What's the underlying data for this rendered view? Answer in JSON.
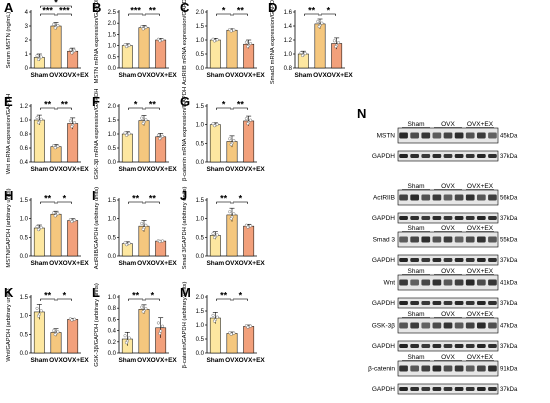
{
  "colors": {
    "sham": "#fde7a0",
    "ovx": "#f5c77e",
    "ovx_ex": "#f2a07b",
    "axis": "#000000",
    "dot": "#ffffff"
  },
  "chart_data": [
    {
      "letter": "A",
      "type": "bar",
      "categories": [
        "Sham",
        "OVX",
        "OVX+EX"
      ],
      "values": [
        0.75,
        3.0,
        1.2
      ],
      "errors": [
        0.25,
        0.25,
        0.22
      ],
      "ylabel": "Serum MSTN (ng/mL)",
      "ylim": [
        0,
        4
      ],
      "yticks": [
        "0",
        "1",
        "2",
        "3",
        "4"
      ],
      "sig": [
        {
          "a": 0,
          "b": 1,
          "label": "***",
          "level": 1
        },
        {
          "a": 1,
          "b": 2,
          "label": "***",
          "level": 1
        },
        {
          "a": 0,
          "b": 2,
          "label": "*",
          "level": 2
        }
      ]
    },
    {
      "letter": "B",
      "type": "bar",
      "categories": [
        "Sham",
        "OVX",
        "OVX+EX"
      ],
      "values": [
        1.0,
        1.8,
        1.25
      ],
      "errors": [
        0.08,
        0.1,
        0.07
      ],
      "ylabel": "MSTN mRNA expression/GAPDH",
      "ylim": [
        0,
        2.5
      ],
      "yticks": [
        "0.0",
        "0.5",
        "1.0",
        "1.5",
        "2.0",
        "2.5"
      ],
      "sig": [
        {
          "a": 0,
          "b": 1,
          "label": "***",
          "level": 1
        },
        {
          "a": 1,
          "b": 2,
          "label": "**",
          "level": 1
        }
      ]
    },
    {
      "letter": "C",
      "type": "bar",
      "categories": [
        "Sham",
        "OVX",
        "OVX+EX"
      ],
      "values": [
        1.0,
        1.35,
        0.85
      ],
      "errors": [
        0.06,
        0.05,
        0.15
      ],
      "ylabel": "ActRIIB mRNA expression/GAPDH",
      "ylim": [
        0,
        2.0
      ],
      "yticks": [
        "0.0",
        "0.5",
        "1.0",
        "1.5",
        "2.0"
      ],
      "sig": [
        {
          "a": 0,
          "b": 1,
          "label": "*",
          "level": 1
        },
        {
          "a": 1,
          "b": 2,
          "label": "**",
          "level": 1
        }
      ]
    },
    {
      "letter": "D",
      "type": "bar",
      "categories": [
        "Sham",
        "OVX",
        "OVX+EX"
      ],
      "values": [
        1.0,
        1.43,
        1.15
      ],
      "errors": [
        0.04,
        0.07,
        0.08
      ],
      "ylabel": "Smad3 mRNA expression/GAPDH",
      "ylim": [
        0.8,
        1.6
      ],
      "yticks": [
        "0.8",
        "1.0",
        "1.2",
        "1.4",
        "1.6"
      ],
      "sig": [
        {
          "a": 0,
          "b": 1,
          "label": "**",
          "level": 1
        },
        {
          "a": 1,
          "b": 2,
          "label": "*",
          "level": 1
        }
      ]
    },
    {
      "letter": "E",
      "type": "bar",
      "categories": [
        "Sham",
        "OVX",
        "OVX+EX"
      ],
      "values": [
        1.0,
        0.62,
        0.95
      ],
      "errors": [
        0.07,
        0.03,
        0.08
      ],
      "ylabel": "Wnt mRNA expression/GAPDH",
      "ylim": [
        0.4,
        1.2
      ],
      "yticks": [
        "0.4",
        "0.6",
        "0.8",
        "1.0",
        "1.2"
      ],
      "sig": [
        {
          "a": 0,
          "b": 1,
          "label": "**",
          "level": 1
        },
        {
          "a": 1,
          "b": 2,
          "label": "**",
          "level": 1
        }
      ]
    },
    {
      "letter": "F",
      "type": "bar",
      "categories": [
        "Sham",
        "OVX",
        "OVX+EX"
      ],
      "values": [
        1.0,
        1.48,
        0.9
      ],
      "errors": [
        0.08,
        0.18,
        0.12
      ],
      "ylabel": "GSK-3β mRNA expression/GAPDH",
      "ylim": [
        0,
        2.0
      ],
      "yticks": [
        "0.0",
        "0.5",
        "1.0",
        "1.5",
        "2.0"
      ],
      "sig": [
        {
          "a": 0,
          "b": 1,
          "label": "*",
          "level": 1
        },
        {
          "a": 1,
          "b": 2,
          "label": "**",
          "level": 1
        }
      ]
    },
    {
      "letter": "G",
      "type": "bar",
      "categories": [
        "Sham",
        "OVX",
        "OVX+EX"
      ],
      "values": [
        1.0,
        0.55,
        1.1
      ],
      "errors": [
        0.05,
        0.15,
        0.13
      ],
      "ylabel": "β-catenin mRNA expression/GAPDH",
      "ylim": [
        0,
        1.5
      ],
      "yticks": [
        "0.0",
        "0.5",
        "1.0",
        "1.5"
      ],
      "sig": [
        {
          "a": 0,
          "b": 1,
          "label": "*",
          "level": 1
        },
        {
          "a": 1,
          "b": 2,
          "label": "**",
          "level": 1
        }
      ]
    },
    {
      "letter": "H",
      "type": "bar",
      "categories": [
        "Sham",
        "OVX",
        "OVX+EX"
      ],
      "values": [
        0.75,
        1.12,
        0.95
      ],
      "errors": [
        0.08,
        0.08,
        0.05
      ],
      "ylabel": "MSTN/GAPDH (arbitrary units)",
      "ylim": [
        0,
        1.5
      ],
      "yticks": [
        "0.0",
        "0.5",
        "1.0",
        "1.5"
      ],
      "sig": [
        {
          "a": 0,
          "b": 1,
          "label": "**",
          "level": 1
        },
        {
          "a": 1,
          "b": 2,
          "label": "*",
          "level": 1
        }
      ]
    },
    {
      "letter": "I",
      "type": "bar",
      "categories": [
        "Sham",
        "OVX",
        "OVX+EX"
      ],
      "values": [
        0.33,
        0.8,
        0.4
      ],
      "errors": [
        0.05,
        0.15,
        0.02
      ],
      "ylabel": "ActRIIB/GAPDH (arbitrary units)",
      "ylim": [
        0,
        1.5
      ],
      "yticks": [
        "0.0",
        "0.5",
        "1.0",
        "1.5"
      ],
      "sig": [
        {
          "a": 0,
          "b": 1,
          "label": "**",
          "level": 1
        },
        {
          "a": 1,
          "b": 2,
          "label": "**",
          "level": 1
        }
      ]
    },
    {
      "letter": "J",
      "type": "bar",
      "categories": [
        "Sham",
        "OVX",
        "OVX+EX"
      ],
      "values": [
        0.55,
        1.1,
        0.8
      ],
      "errors": [
        0.1,
        0.18,
        0.05
      ],
      "ylabel": "Smad 3/GAPDH (arbitrary units)",
      "ylim": [
        0,
        1.5
      ],
      "yticks": [
        "0.0",
        "0.5",
        "1.0",
        "1.5"
      ],
      "sig": [
        {
          "a": 0,
          "b": 1,
          "label": "**",
          "level": 1
        },
        {
          "a": 1,
          "b": 2,
          "label": "*",
          "level": 1
        }
      ]
    },
    {
      "letter": "K",
      "type": "bar",
      "categories": [
        "Sham",
        "OVX",
        "OVX+EX"
      ],
      "values": [
        1.1,
        0.55,
        0.9
      ],
      "errors": [
        0.2,
        0.1,
        0.03
      ],
      "ylabel": "Wnt/GAPDH (arbitrary units)",
      "ylim": [
        0,
        1.5
      ],
      "yticks": [
        "0.0",
        "0.5",
        "1.0",
        "1.5"
      ],
      "sig": [
        {
          "a": 0,
          "b": 1,
          "label": "**",
          "level": 1
        },
        {
          "a": 1,
          "b": 2,
          "label": "*",
          "level": 1
        }
      ]
    },
    {
      "letter": "L",
      "type": "bar",
      "categories": [
        "Sham",
        "OVX",
        "OVX+EX"
      ],
      "values": [
        0.25,
        0.78,
        0.45
      ],
      "errors": [
        0.12,
        0.08,
        0.18
      ],
      "ylabel": "GSK-3β/GAPDH (arbitrary units)",
      "ylim": [
        0,
        1.0
      ],
      "yticks": [
        "0.0",
        "0.2",
        "0.4",
        "0.6",
        "0.8",
        "1.0"
      ],
      "sig": [
        {
          "a": 0,
          "b": 1,
          "label": "**",
          "level": 1
        },
        {
          "a": 1,
          "b": 2,
          "label": "*",
          "level": 1
        }
      ]
    },
    {
      "letter": "M",
      "type": "bar",
      "categories": [
        "Sham",
        "OVX",
        "OVX+EX"
      ],
      "values": [
        1.25,
        0.7,
        0.95
      ],
      "errors": [
        0.2,
        0.05,
        0.05
      ],
      "ylabel": "β-catenin/GAPDH (arbitrary units)",
      "ylim": [
        0,
        2.0
      ],
      "yticks": [
        "0.0",
        "0.5",
        "1.0",
        "1.5",
        "2.0"
      ],
      "sig": [
        {
          "a": 0,
          "b": 1,
          "label": "**",
          "level": 1
        },
        {
          "a": 1,
          "b": 2,
          "label": "*",
          "level": 1
        }
      ]
    }
  ],
  "blots": {
    "letter": "N",
    "groups": [
      "Sham",
      "OVX",
      "OVX+EX"
    ],
    "rows": [
      {
        "name": "MSTN",
        "kda": "45kDa",
        "show_groups": true
      },
      {
        "name": "GAPDH",
        "kda": "37kDa",
        "show_groups": false
      },
      {
        "name": "ActRIIB",
        "kda": "56kDa",
        "show_groups": true
      },
      {
        "name": "GAPDH",
        "kda": "37kDa",
        "show_groups": false
      },
      {
        "name": "Smad 3",
        "kda": "55kDa",
        "show_groups": true
      },
      {
        "name": "GAPDH",
        "kda": "37kDa",
        "show_groups": false
      },
      {
        "name": "Wnt",
        "kda": "41kDa",
        "show_groups": true
      },
      {
        "name": "GAPDH",
        "kda": "37kDa",
        "show_groups": false
      },
      {
        "name": "GSK-3β",
        "kda": "47kDa",
        "show_groups": true
      },
      {
        "name": "GAPDH",
        "kda": "37kDa",
        "show_groups": false
      },
      {
        "name": "β-catenin",
        "kda": "91kDa",
        "show_groups": true
      },
      {
        "name": "GAPDH",
        "kda": "37kDa",
        "show_groups": false
      }
    ]
  }
}
